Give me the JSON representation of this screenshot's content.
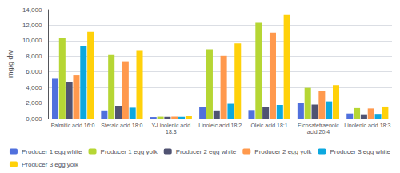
{
  "chart_data": {
    "type": "bar",
    "categories": [
      "Palmitic acid 16:0",
      "Steraic acid 18:0",
      "Y-Linolenic acid\n18:3",
      "Linoleic acid 18:2",
      "Oleic acid 18:1",
      "Eicosatetraenoic\nacid 20:4",
      "Linolenic acid 18:3"
    ],
    "series": [
      {
        "name": "Producer 1 egg white",
        "values": [
          5100,
          1050,
          200,
          1500,
          1100,
          2050,
          650
        ]
      },
      {
        "name": "Producer 1 egg yolk",
        "values": [
          10300,
          8150,
          250,
          8900,
          12300,
          3950,
          1350
        ]
      },
      {
        "name": "Producer 2 egg white",
        "values": [
          4650,
          1650,
          230,
          1050,
          1500,
          1800,
          550
        ]
      },
      {
        "name": "Producer 2 egg yolk",
        "values": [
          5550,
          7350,
          270,
          8050,
          11050,
          3500,
          1300
        ]
      },
      {
        "name": "Producer 3 egg white",
        "values": [
          9300,
          1400,
          220,
          1900,
          1750,
          2200,
          600
        ]
      },
      {
        "name": "Producer 3 egg yolk",
        "values": [
          11150,
          8700,
          310,
          9650,
          13300,
          4300,
          1550
        ]
      }
    ],
    "ylabel": "mg/g dw",
    "ylim": [
      0,
      14000
    ],
    "yticks": [
      {
        "value": 0,
        "label": "0,000"
      },
      {
        "value": 2000,
        "label": "2,000"
      },
      {
        "value": 4000,
        "label": "4,000"
      },
      {
        "value": 6000,
        "label": "6,000"
      },
      {
        "value": 8000,
        "label": "8,000"
      },
      {
        "value": 10000,
        "label": "10,000"
      },
      {
        "value": 12000,
        "label": "12,000"
      },
      {
        "value": 14000,
        "label": "14,000"
      }
    ],
    "grid": true,
    "legend": "bottom"
  }
}
